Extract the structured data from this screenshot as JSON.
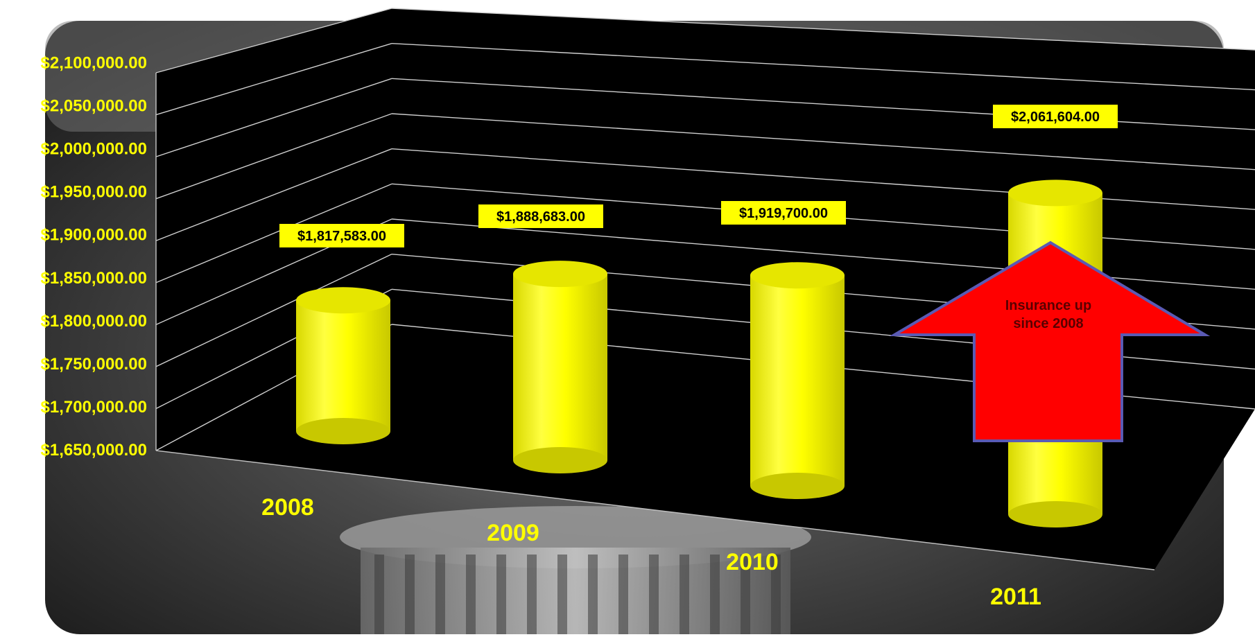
{
  "chart_data": {
    "type": "bar",
    "style": "3d-cylinder",
    "categories": [
      "2008",
      "2009",
      "2010",
      "2011"
    ],
    "values": [
      1817583,
      1888683,
      1919700,
      2061604
    ],
    "value_labels": [
      "$1,817,583.00",
      "$1,888,683.00",
      "$1,919,700.00",
      "$2,061,604.00"
    ],
    "ylim": [
      1650000,
      2100000
    ],
    "y_ticks": [
      "$1,650,000.00",
      "$1,700,000.00",
      "$1,750,000.00",
      "$1,800,000.00",
      "$1,850,000.00",
      "$1,900,000.00",
      "$1,950,000.00",
      "$2,000,000.00",
      "$2,050,000.00",
      "$2,100,000.00"
    ],
    "grid": true,
    "legend": "none",
    "annotation": {
      "shape": "up-arrow",
      "line1": "Insurance up",
      "line2": "since 2008"
    },
    "colors": {
      "bar": "#ffff00",
      "bar_shade": "#c8c800",
      "plot_back": "#000000",
      "tick_text": "#ffff00",
      "category_text": "#ffff00",
      "value_label_bg": "#ffff00",
      "value_label_text": "#000000",
      "arrow_fill": "#ff0000",
      "arrow_stroke": "#5a5ab4",
      "grid": "#cfcfcf",
      "photo_tone": "#4a4a4a"
    }
  }
}
